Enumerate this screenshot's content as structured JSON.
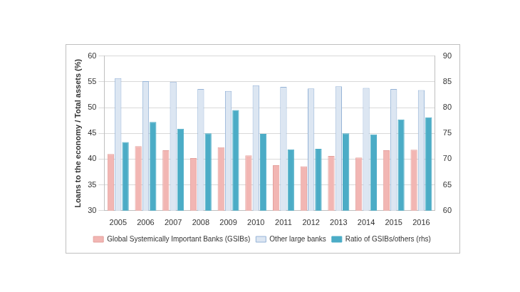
{
  "chart_data": {
    "type": "bar",
    "categories": [
      "2005",
      "2006",
      "2007",
      "2008",
      "2009",
      "2010",
      "2011",
      "2012",
      "2013",
      "2014",
      "2015",
      "2016"
    ],
    "y_label": "Loans to the economy / Total assets (%)",
    "series": [
      {
        "name": "Global Systemically Important Banks (GSIBs)",
        "color": "#f2b6b3",
        "values": [
          41.0,
          42.5,
          41.7,
          40.2,
          42.3,
          40.7,
          38.8,
          38.6,
          40.6,
          40.3,
          41.7,
          41.8
        ]
      },
      {
        "name": "Other large banks",
        "color": "#dce6f2",
        "values": [
          55.7,
          55.1,
          55.0,
          53.6,
          53.2,
          54.3,
          54.0,
          53.7,
          54.1,
          53.8,
          53.6,
          53.4
        ]
      },
      {
        "name": "Ratio of GSIBs/others (rhs)",
        "color": "#4bacc6",
        "axis": "y2",
        "values": [
          73.3,
          77.2,
          75.9,
          75.0,
          79.5,
          74.9,
          71.9,
          72.0,
          75.0,
          74.8,
          77.7,
          78.1
        ]
      }
    ],
    "ylim": [
      30,
      60
    ],
    "yticks": [
      30,
      35,
      40,
      45,
      50,
      55,
      60
    ],
    "y2lim": [
      60,
      90
    ],
    "y2ticks": [
      60,
      65,
      70,
      75,
      80,
      85,
      90
    ],
    "grid": true,
    "legend": "bottom"
  }
}
